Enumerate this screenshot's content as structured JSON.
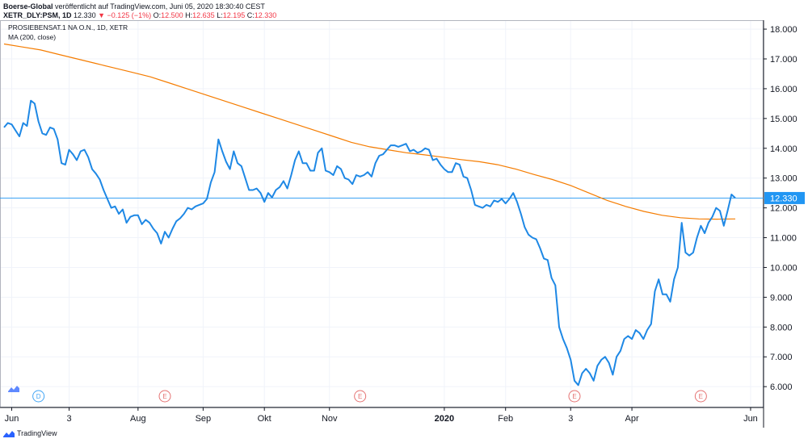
{
  "header": {
    "publisher": "Boerse-Global",
    "published_text": "veröffentlicht auf TradingView.com, Juni 05, 2020 18:30:40 CEST",
    "ticker": "XETR_DLY:PSM, 1D",
    "last": "12.330",
    "change_arrow": "▼",
    "change": "−0.125 (−1%)",
    "o_label": "O:",
    "o_value": "12.500",
    "h_label": "H:",
    "h_value": "12.635",
    "l_label": "L:",
    "l_value": "12.195",
    "c_label": "C:",
    "c_value": "12.330"
  },
  "legend": {
    "symbol": "PROSIEBENSAT.1 NA O.N., 1D, XETR",
    "ma": "MA (200, close)"
  },
  "footer": {
    "brand": "TradingView"
  },
  "colors": {
    "price": "#1e88e5",
    "ma": "#f57c00",
    "price_label_bg": "#2196f3",
    "grid": "#f0f3fa",
    "axis": "#131722",
    "event_e": "#e57373",
    "event_d": "#42a5f5"
  },
  "chart_data": {
    "type": "line",
    "title": "PROSIEBENSAT.1 NA O.N., 1D, XETR",
    "ylim": [
      5.3,
      18.3
    ],
    "y_ticks": [
      "18.000",
      "17.000",
      "16.000",
      "15.000",
      "14.000",
      "13.000",
      "12.000",
      "11.000",
      "10.000",
      "9.000",
      "8.000",
      "7.000",
      "6.000"
    ],
    "x_ticks": [
      {
        "label": "Jun",
        "i": 2
      },
      {
        "label": "3",
        "i": 17
      },
      {
        "label": "Aug",
        "i": 35
      },
      {
        "label": "Sep",
        "i": 52
      },
      {
        "label": "Okt",
        "i": 68
      },
      {
        "label": "Nov",
        "i": 85
      },
      {
        "label": "2020",
        "i": 115,
        "bold": true
      },
      {
        "label": "Feb",
        "i": 131
      },
      {
        "label": "3",
        "i": 148
      },
      {
        "label": "Apr",
        "i": 164
      },
      {
        "label": "Jun",
        "i": 195
      }
    ],
    "last_price_label": "12.330",
    "last_price": 12.33,
    "events": [
      {
        "type": "D",
        "i": 9
      },
      {
        "type": "E",
        "i": 42
      },
      {
        "type": "E",
        "i": 93
      },
      {
        "type": "E",
        "i": 149
      },
      {
        "type": "E",
        "i": 182
      }
    ],
    "series": [
      {
        "name": "PROSIEBENSAT.1 NA O.N.",
        "values": [
          14.7,
          14.85,
          14.8,
          14.6,
          14.4,
          14.85,
          14.75,
          15.6,
          15.5,
          14.9,
          14.5,
          14.45,
          14.7,
          14.65,
          14.3,
          13.5,
          13.45,
          13.95,
          13.8,
          13.6,
          13.9,
          13.95,
          13.7,
          13.3,
          13.15,
          12.95,
          12.6,
          12.3,
          12.0,
          12.05,
          11.8,
          11.95,
          11.5,
          11.7,
          11.75,
          11.75,
          11.45,
          11.6,
          11.5,
          11.3,
          11.15,
          10.8,
          11.2,
          11.0,
          11.3,
          11.55,
          11.65,
          11.8,
          12.0,
          11.95,
          12.05,
          12.1,
          12.15,
          12.3,
          12.85,
          13.2,
          14.3,
          13.9,
          13.55,
          13.3,
          13.9,
          13.5,
          13.4,
          13.0,
          12.6,
          12.6,
          12.65,
          12.5,
          12.2,
          12.5,
          12.35,
          12.6,
          12.7,
          12.9,
          12.65,
          13.1,
          13.6,
          13.9,
          13.5,
          13.5,
          13.25,
          13.25,
          13.85,
          14.0,
          13.25,
          13.2,
          13.1,
          13.4,
          13.3,
          13.0,
          12.95,
          12.8,
          13.1,
          13.05,
          13.1,
          13.2,
          13.05,
          13.5,
          13.75,
          13.8,
          13.95,
          14.1,
          14.1,
          14.05,
          14.1,
          14.15,
          13.9,
          13.95,
          13.85,
          13.9,
          14.0,
          13.95,
          13.6,
          13.65,
          13.45,
          13.3,
          13.2,
          13.2,
          13.5,
          13.45,
          13.05,
          13.0,
          12.6,
          12.1,
          12.05,
          12.0,
          12.1,
          12.05,
          12.25,
          12.2,
          12.3,
          12.15,
          12.3,
          12.5,
          12.2,
          11.8,
          11.35,
          11.1,
          11.0,
          10.95,
          10.65,
          10.3,
          10.25,
          9.65,
          9.4,
          8.0,
          7.6,
          7.3,
          6.9,
          6.2,
          6.05,
          6.45,
          6.6,
          6.45,
          6.2,
          6.7,
          6.9,
          7.0,
          6.8,
          6.4,
          7.0,
          7.2,
          7.6,
          7.7,
          7.6,
          7.9,
          7.8,
          7.6,
          7.9,
          8.1,
          9.2,
          9.6,
          9.1,
          9.1,
          8.85,
          9.6,
          10.0,
          11.5,
          10.5,
          10.4,
          10.5,
          11.0,
          11.4,
          11.15,
          11.5,
          11.7,
          12.0,
          11.9,
          11.4,
          11.9,
          12.45,
          12.33
        ]
      },
      {
        "name": "MA (200, close)",
        "values": [
          17.5,
          17.4,
          17.3,
          17.15,
          17.0,
          16.85,
          16.7,
          16.55,
          16.4,
          16.2,
          16.0,
          15.8,
          15.6,
          15.4,
          15.2,
          15.0,
          14.8,
          14.6,
          14.4,
          14.2,
          14.05,
          13.95,
          13.85,
          13.78,
          13.7,
          13.62,
          13.55,
          13.45,
          13.3,
          13.12,
          12.95,
          12.75,
          12.5,
          12.25,
          12.05,
          11.88,
          11.75,
          11.67,
          11.63,
          11.62,
          11.63
        ]
      }
    ]
  }
}
